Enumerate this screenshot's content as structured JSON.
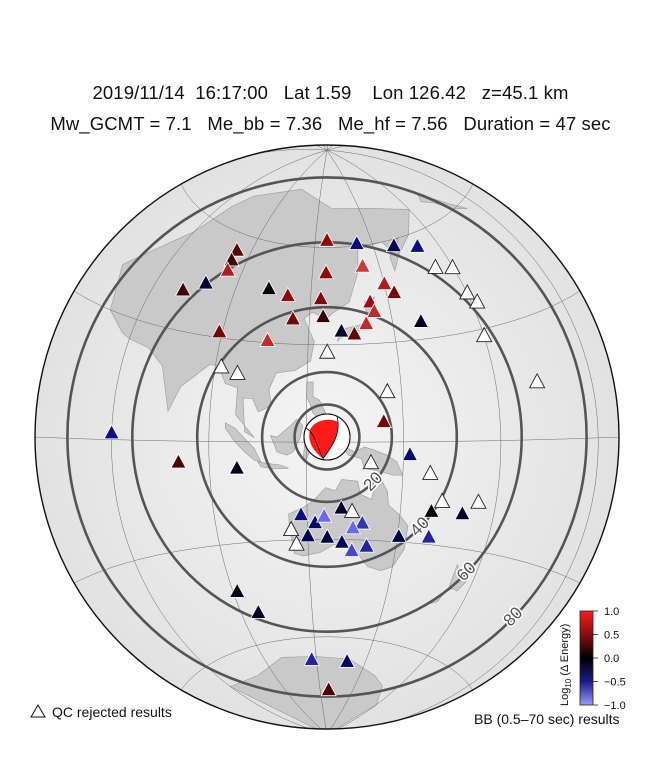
{
  "header": {
    "line1": "2019/11/14  16:17:00   Lat 1.59    Lon 126.42   z=45.1 km",
    "line2": "Mw_GCMT = 7.1   Me_bb = 7.36   Me_hf = 7.56   Duration = 47 sec"
  },
  "map": {
    "projection": "azimuthal-equidistant",
    "center": {
      "lat": 1.59,
      "lon": 126.42
    },
    "event_marker_icon": "beachball-focal-mechanism-icon",
    "distance_rings_deg": [
      10,
      20,
      40,
      60,
      80
    ],
    "ring_labels": [
      {
        "deg": 20,
        "text": "20"
      },
      {
        "deg": 40,
        "text": "40"
      },
      {
        "deg": 60,
        "text": "60"
      },
      {
        "deg": 80,
        "text": "80"
      }
    ]
  },
  "colorbar": {
    "label": "Log10 (Δ Energy)",
    "label_base": "Log",
    "label_sub": "10",
    "label_rest": " (Δ Energy)",
    "min": -1.0,
    "max": 1.0,
    "ticks": [
      "1.0",
      "0.5",
      "0.0",
      "−0.5",
      "−1.0"
    ],
    "tick_values": [
      1.0,
      0.5,
      0.0,
      -0.5,
      -1.0
    ],
    "colors": {
      "high": "#ff1a1a",
      "mid": "#000000",
      "low": "#3333ff"
    }
  },
  "legend": {
    "qc_rejected": "QC rejected results",
    "bb_results": "BB (0.5–70 sec) results"
  },
  "stations": [
    {
      "id": "s01",
      "lon": 126.42,
      "lat": 62.0,
      "v": 0.55
    },
    {
      "id": "s02",
      "lon": 142.0,
      "lat": 60.5,
      "v": -0.55
    },
    {
      "id": "s03",
      "lon": 160.0,
      "lat": 58.0,
      "v": -0.35
    },
    {
      "id": "s04",
      "lon": 170.5,
      "lat": 56.0,
      "v": -0.55
    },
    {
      "id": "s05",
      "lon": 142.5,
      "lat": 53.5,
      "v": 0.75
    },
    {
      "id": "s06",
      "lon": 173.0,
      "lat": 49.0,
      "qc": true
    },
    {
      "id": "s07",
      "lon": 179.5,
      "lat": 47.5,
      "qc": true
    },
    {
      "id": "s08",
      "lon": 150.0,
      "lat": 47.5,
      "v": 0.65
    },
    {
      "id": "s09",
      "lon": 126.0,
      "lat": 52.0,
      "v": 0.55
    },
    {
      "id": "s10",
      "lon": 153.0,
      "lat": 44.5,
      "v": 0.45
    },
    {
      "id": "s11",
      "lon": 83.5,
      "lat": 55.0,
      "v": 0.35
    },
    {
      "id": "s12",
      "lon": 83.5,
      "lat": 52.0,
      "v": 0.25
    },
    {
      "id": "s13",
      "lon": 84.0,
      "lat": 49.0,
      "v": 0.65
    },
    {
      "id": "s14",
      "lon": 103.0,
      "lat": 46.0,
      "v": 0.0
    },
    {
      "id": "s15",
      "lon": 111.0,
      "lat": 44.5,
      "v": 0.55
    },
    {
      "id": "s16",
      "lon": 78.0,
      "lat": 44.0,
      "v": -0.2
    },
    {
      "id": "s17",
      "lon": 124.0,
      "lat": 44.0,
      "v": 0.5
    },
    {
      "id": "s18",
      "lon": 143.0,
      "lat": 42.5,
      "v": 0.6
    },
    {
      "id": "s19",
      "lon": 144.0,
      "lat": 39.5,
      "v": 0.7
    },
    {
      "id": "s20",
      "lon": 71.0,
      "lat": 40.5,
      "v": 0.25
    },
    {
      "id": "s21",
      "lon": 114.0,
      "lat": 37.5,
      "v": 0.45
    },
    {
      "id": "s22",
      "lon": 125.0,
      "lat": 38.5,
      "v": 0.2
    },
    {
      "id": "s23",
      "lon": 131.5,
      "lat": 34.0,
      "v": -0.2
    },
    {
      "id": "s24",
      "lon": 136.0,
      "lat": 33.0,
      "v": 0.4
    },
    {
      "id": "s25",
      "lon": 140.5,
      "lat": 36.0,
      "v": 0.7
    },
    {
      "id": "s26",
      "lon": 89.0,
      "lat": 31.5,
      "v": 0.45
    },
    {
      "id": "s27",
      "lon": 106.0,
      "lat": 30.5,
      "v": 0.7
    },
    {
      "id": "s28",
      "lon": 126.5,
      "lat": 27.5,
      "qc": true
    },
    {
      "id": "s29",
      "lon": 92.0,
      "lat": 21.5,
      "qc": true
    },
    {
      "id": "s30",
      "lon": 97.5,
      "lat": 20.0,
      "qc": true
    },
    {
      "id": "s31",
      "lon": 160.0,
      "lat": 35.0,
      "v": -0.15
    },
    {
      "id": "s32",
      "lon": 180.0,
      "lat": 40.0,
      "qc": true
    },
    {
      "id": "s33",
      "lon": 182.0,
      "lat": 37.0,
      "qc": true
    },
    {
      "id": "s34",
      "lon": 145.5,
      "lat": 15.0,
      "qc": true
    },
    {
      "id": "s35",
      "lon": 180.0,
      "lat": 28.0,
      "qc": true
    },
    {
      "id": "s36",
      "lon": 144.0,
      "lat": 6.0,
      "v": 0.45
    },
    {
      "id": "s37",
      "lon": 152.0,
      "lat": -4.0,
      "v": -0.5
    },
    {
      "id": "s38",
      "lon": 193.0,
      "lat": 14.0,
      "qc": true
    },
    {
      "id": "s39",
      "lon": 60.0,
      "lat": 1.5,
      "v": -0.6
    },
    {
      "id": "s40",
      "lon": 80.5,
      "lat": -6.0,
      "v": 0.3
    },
    {
      "id": "s41",
      "lon": 98.5,
      "lat": -8.0,
      "v": -0.1
    },
    {
      "id": "s42",
      "lon": 140.0,
      "lat": -6.5,
      "qc": true
    },
    {
      "id": "s43",
      "lon": 158.5,
      "lat": -9.5,
      "qc": true
    },
    {
      "id": "s44",
      "lon": 163.0,
      "lat": -17.5,
      "qc": true
    },
    {
      "id": "s45",
      "lon": 160.0,
      "lat": -20.5,
      "v": -0.05
    },
    {
      "id": "s46",
      "lon": 170.0,
      "lat": -20.5,
      "v": -0.2
    },
    {
      "id": "s47",
      "lon": 174.5,
      "lat": -17.0,
      "qc": true
    },
    {
      "id": "s48",
      "lon": 118.0,
      "lat": -22.5,
      "v": -0.55
    },
    {
      "id": "s49",
      "lon": 122.5,
      "lat": -25.0,
      "v": -0.45
    },
    {
      "id": "s50",
      "lon": 125.5,
      "lat": -23.0,
      "v": -0.85
    },
    {
      "id": "s51",
      "lon": 131.0,
      "lat": -20.5,
      "v": -0.2
    },
    {
      "id": "s52",
      "lon": 134.5,
      "lat": -21.5,
      "qc": true
    },
    {
      "id": "s53",
      "lon": 138.0,
      "lat": -25.0,
      "v": -0.7
    },
    {
      "id": "s54",
      "lon": 135.0,
      "lat": -26.5,
      "v": -0.85
    },
    {
      "id": "s55",
      "lon": 114.5,
      "lat": -27.0,
      "qc": true
    },
    {
      "id": "s56",
      "lon": 120.0,
      "lat": -29.0,
      "v": -0.35
    },
    {
      "id": "s57",
      "lon": 116.0,
      "lat": -31.5,
      "qc": true
    },
    {
      "id": "s58",
      "lon": 126.5,
      "lat": -29.5,
      "v": -0.3
    },
    {
      "id": "s59",
      "lon": 131.5,
      "lat": -31.0,
      "v": -0.4
    },
    {
      "id": "s60",
      "lon": 135.0,
      "lat": -33.5,
      "v": -0.75
    },
    {
      "id": "s61",
      "lon": 140.0,
      "lat": -32.0,
      "v": -0.65
    },
    {
      "id": "s62",
      "lon": 150.5,
      "lat": -28.5,
      "v": -0.3
    },
    {
      "id": "s63",
      "lon": 160.5,
      "lat": -28.0,
      "v": -0.65
    },
    {
      "id": "s64",
      "lon": 91.5,
      "lat": -44.0,
      "v": -0.1
    },
    {
      "id": "s65",
      "lon": 97.0,
      "lat": -51.0,
      "v": -0.15
    },
    {
      "id": "s66",
      "lon": 117.0,
      "lat": -67.0,
      "v": -0.65
    },
    {
      "id": "s67",
      "lon": 139.0,
      "lat": -67.5,
      "v": -0.45
    },
    {
      "id": "s68",
      "lon": 128.0,
      "lat": -76.5,
      "v": 0.3
    }
  ]
}
